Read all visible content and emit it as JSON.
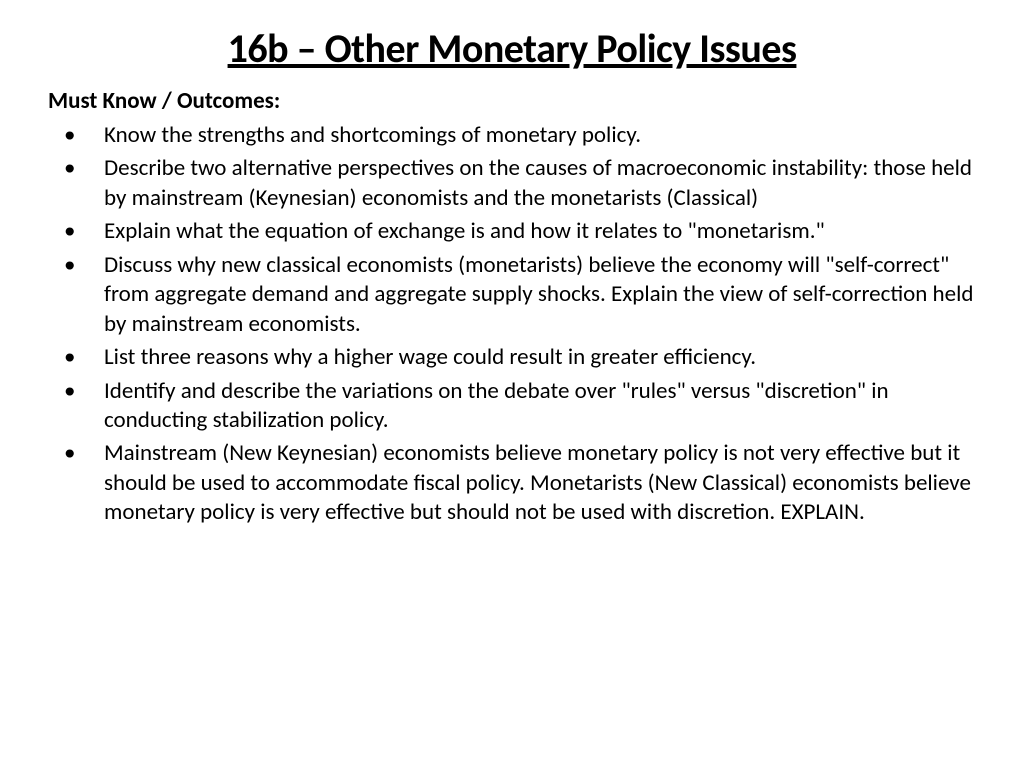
{
  "slide": {
    "title": "16b – Other Monetary Policy Issues",
    "section_heading": "Must Know / Outcomes:",
    "bullets": [
      "Know the strengths and shortcomings of monetary policy.",
      "Describe two alternative perspectives on the causes of macroeconomic instability: those held by mainstream  (Keynesian) economists and the monetarists (Classical)",
      "Explain what the equation of exchange is and how it relates to \"monetarism.\"",
      "Discuss why new classical economists (monetarists) believe the economy will \"self-correct\" from aggregate demand and aggregate supply shocks. Explain the view of self-correction held by mainstream economists.",
      "List three reasons why a higher wage could result in greater efficiency.",
      "Identify and describe the variations on the debate over \"rules\" versus \"discretion\" in conducting stabilization policy.",
      "Mainstream (New Keynesian) economists believe monetary policy is not very effective but it should be used to accommodate fiscal policy. Monetarists (New Classical) economists believe monetary policy is very effective but should not be used with discretion. EXPLAIN."
    ]
  },
  "styling": {
    "background_color": "#ffffff",
    "text_color": "#000000",
    "title_fontsize": 40,
    "title_fontweight": 700,
    "title_underline": true,
    "heading_fontsize": 23,
    "heading_fontweight": 700,
    "body_fontsize": 23,
    "body_fontweight": 400,
    "font_family": "Calibri",
    "line_height": 1.28
  }
}
